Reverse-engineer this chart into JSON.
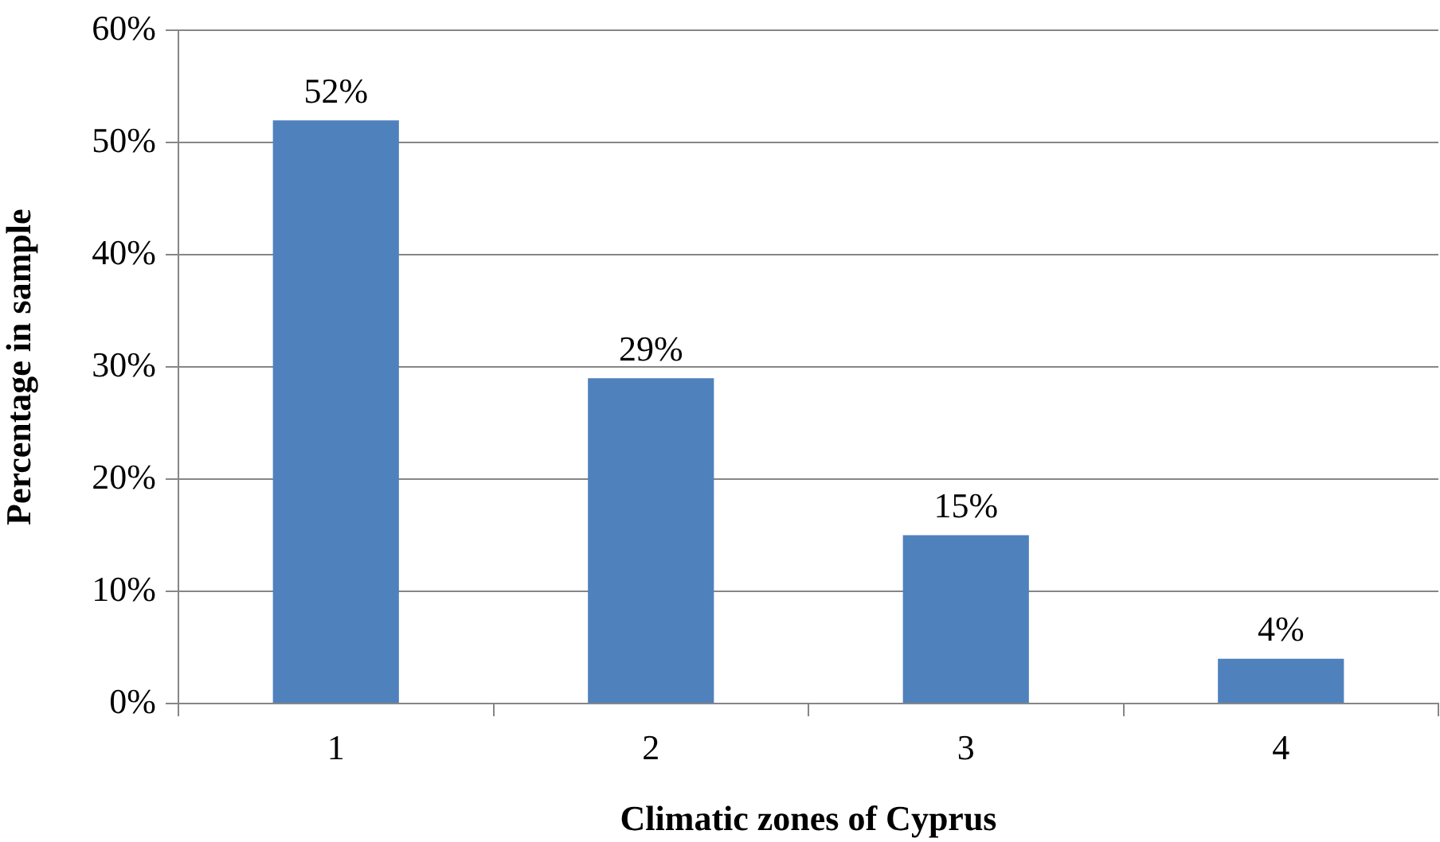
{
  "chart_data": {
    "type": "bar",
    "xlabel": "Climatic zones of Cyprus",
    "ylabel": "Percentage in sample",
    "categories": [
      "1",
      "2",
      "3",
      "4"
    ],
    "values": [
      52,
      29,
      15,
      4
    ],
    "value_labels": [
      "52%",
      "29%",
      "15%",
      "4%"
    ],
    "color": "#4f81bd",
    "ylim": [
      0,
      60
    ],
    "yticks": [
      {
        "value": 0,
        "label": "0%"
      },
      {
        "value": 10,
        "label": "10%"
      },
      {
        "value": 20,
        "label": "20%"
      },
      {
        "value": 30,
        "label": "30%"
      },
      {
        "value": 40,
        "label": "40%"
      },
      {
        "value": 50,
        "label": "50%"
      },
      {
        "value": 60,
        "label": "60%"
      }
    ],
    "grid": "y"
  }
}
